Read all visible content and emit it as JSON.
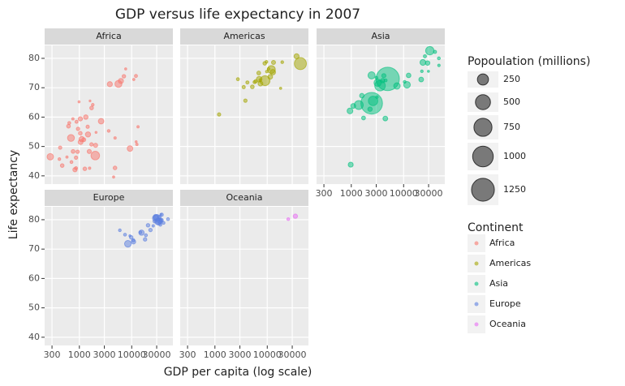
{
  "chart_data": {
    "type": "scatter",
    "title": "GDP versus life expectancy in 2007",
    "xlabel": "GDP per capita (log scale)",
    "ylabel": "Life expectancy",
    "xlog": true,
    "xlim": [
      217,
      61200
    ],
    "xticks": [
      300,
      1000,
      3000,
      10000,
      30000
    ],
    "ylim": [
      37.2,
      84.4
    ],
    "yticks": [
      40,
      50,
      60,
      70,
      80
    ],
    "grid": true,
    "size_legend": {
      "title": "Popoulation (millions)",
      "values": [
        250,
        500,
        750,
        1000,
        1250
      ]
    },
    "color_legend": {
      "title": "Continent"
    },
    "facets": [
      {
        "name": "Africa",
        "color": "#F8766D",
        "x": [
          6223,
          4797,
          1441,
          12570,
          1217,
          430,
          2042,
          706,
          1704,
          986,
          278,
          3633,
          1545,
          2082,
          5581,
          12154,
          641,
          691,
          13206,
          753,
          1328,
          943,
          579,
          1463,
          1569,
          415,
          12057,
          1045,
          759,
          1043,
          1803,
          10957,
          3820,
          824,
          4811,
          620,
          2014,
          7670,
          863,
          1598,
          1712,
          863,
          926,
          9270,
          2602,
          4513,
          1107,
          883,
          7093,
          1056,
          1271,
          470
        ],
        "y": [
          72.3,
          42.7,
          56.7,
          50.7,
          52.3,
          49.6,
          50.4,
          44.7,
          50.7,
          65.2,
          46.5,
          55.3,
          48.3,
          54.8,
          71.3,
          51.6,
          58.0,
          52.9,
          56.7,
          59.4,
          60.0,
          56.0,
          46.4,
          54.1,
          42.6,
          45.7,
          74.0,
          59.4,
          48.3,
          54.5,
          64.2,
          72.8,
          71.2,
          42.1,
          52.9,
          56.9,
          46.9,
          76.4,
          46.2,
          65.5,
          63.1,
          42.6,
          48.2,
          49.3,
          58.6,
          39.6,
          52.5,
          58.4,
          73.9,
          51.5,
          42.4,
          43.5
        ],
        "size": [
          33.3,
          12.4,
          8.1,
          1.6,
          14.3,
          8.4,
          17.7,
          4.4,
          10.2,
          0.7,
          64.6,
          3.8,
          18.0,
          0.5,
          80.3,
          0.55,
          4.9,
          76.5,
          1.45,
          1.7,
          22.9,
          9.9,
          1.5,
          35.6,
          2.0,
          3.2,
          6.0,
          19.2,
          13.3,
          12.0,
          3.3,
          1.25,
          33.8,
          20.0,
          2.1,
          12.9,
          135,
          0.8,
          8.9,
          0.2,
          12.3,
          6.1,
          9.1,
          44.0,
          42.3,
          1.1,
          38.1,
          5.7,
          10.3,
          29.2,
          11.7,
          12.3
        ]
      },
      {
        "name": "Americas",
        "color": "#A3A500",
        "x": [
          12779,
          3822,
          9066,
          36319,
          13172,
          7007,
          9645,
          8948,
          6025,
          6873,
          5728,
          5186,
          1202,
          3548,
          7321,
          11978,
          2749,
          9809,
          4173,
          7409,
          19329,
          18009,
          42952,
          10611,
          11416
        ],
        "y": [
          75.3,
          65.6,
          72.4,
          80.7,
          78.6,
          72.9,
          78.8,
          78.3,
          72.2,
          75.0,
          71.9,
          70.3,
          60.9,
          70.2,
          72.6,
          76.2,
          72.9,
          75.5,
          71.8,
          71.4,
          78.7,
          69.8,
          78.2,
          76.4,
          73.7
        ],
        "size": [
          40.3,
          9.1,
          190,
          33.4,
          16.3,
          44.2,
          4.1,
          11.4,
          9.3,
          13.8,
          6.9,
          12.6,
          8.5,
          7.5,
          2.8,
          108.7,
          5.7,
          3.2,
          6.7,
          28.7,
          3.9,
          1.1,
          301,
          3.4,
          26.1
        ]
      },
      {
        "name": "Asia",
        "color": "#00BF7D",
        "x": [
          975,
          29796,
          1391,
          1714,
          4959,
          39725,
          2452,
          3541,
          11606,
          4471,
          25523,
          31656,
          4519,
          1593,
          23348,
          47307,
          10461,
          12452,
          3096,
          944,
          1091,
          22316,
          2606,
          3190,
          21655,
          47143,
          3970,
          4185,
          28718,
          7458,
          2442,
          3025,
          2281
        ],
        "y": [
          43.8,
          75.6,
          64.1,
          59.7,
          73.0,
          82.2,
          64.7,
          70.7,
          71.0,
          59.5,
          80.7,
          82.6,
          72.5,
          67.3,
          78.6,
          77.6,
          72.0,
          74.2,
          66.8,
          62.1,
          63.8,
          75.6,
          65.5,
          71.7,
          72.8,
          80.0,
          72.4,
          74.1,
          78.4,
          70.6,
          74.2,
          73.4,
          62.7
        ],
        "size": [
          31.9,
          0.7,
          150,
          14.1,
          1318,
          6.98,
          1110,
          223,
          69.5,
          27.5,
          6.4,
          127,
          6.1,
          23.3,
          49.0,
          2.5,
          3.9,
          24.8,
          2.9,
          47.8,
          28.9,
          3.2,
          169,
          91.1,
          27.6,
          4.55,
          20.4,
          19.3,
          23.2,
          65.1,
          85.3,
          4.0,
          22.2
        ]
      },
      {
        "name": "Europe",
        "color": "#5B7FE0",
        "x": [
          5937,
          36126,
          33693,
          7446,
          10681,
          14619,
          22833,
          35278,
          33207,
          30470,
          32170,
          27538,
          18009,
          36181,
          40676,
          28570,
          9254,
          36798,
          49357,
          15390,
          20510,
          10808,
          9787,
          18678,
          25768,
          28821,
          33860,
          37506,
          8458,
          33203
        ],
        "y": [
          76.4,
          79.8,
          79.4,
          74.9,
          73.0,
          75.7,
          76.5,
          78.3,
          79.3,
          80.7,
          79.4,
          79.5,
          73.3,
          81.8,
          78.9,
          80.5,
          74.5,
          79.8,
          80.2,
          75.6,
          78.1,
          72.5,
          74.0,
          74.7,
          77.9,
          80.9,
          80.9,
          81.7,
          71.8,
          79.4
        ],
        "size": [
          3.6,
          8.2,
          10.4,
          4.6,
          7.3,
          4.5,
          10.2,
          5.5,
          5.2,
          61.1,
          82.4,
          10.7,
          9.96,
          0.3,
          4.1,
          58.1,
          0.7,
          16.6,
          4.6,
          38.5,
          10.6,
          22.3,
          10.2,
          5.4,
          2.0,
          40.4,
          9.0,
          7.6,
          71.2,
          60.8
        ]
      },
      {
        "name": "Oceania",
        "color": "#E76BF3",
        "x": [
          34435,
          25185
        ],
        "y": [
          81.2,
          80.2
        ],
        "size": [
          20.4,
          4.1
        ]
      }
    ]
  }
}
